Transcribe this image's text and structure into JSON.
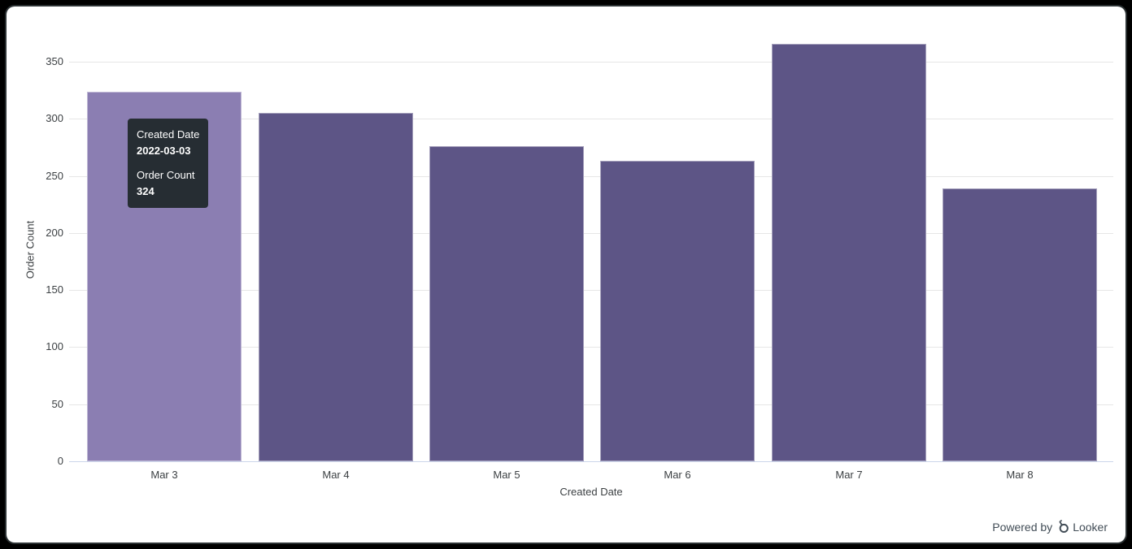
{
  "chart_data": {
    "type": "bar",
    "title": "",
    "categories": [
      "Mar 3",
      "Mar 4",
      "Mar 5",
      "Mar 6",
      "Mar 7",
      "Mar 8"
    ],
    "values": [
      324,
      305,
      276,
      263,
      366,
      239
    ],
    "xlabel": "Created Date",
    "ylabel": "Order Count",
    "ylim": [
      0,
      370
    ],
    "yticks": [
      0,
      50,
      100,
      150,
      200,
      250,
      300,
      350
    ],
    "grid": true,
    "legend": "none",
    "highlighted_index": 0
  },
  "tooltip": {
    "dimension_label": "Created Date",
    "dimension_value": "2022-03-03",
    "measure_label": "Order Count",
    "measure_value": "324"
  },
  "branding": {
    "powered_by": "Powered by",
    "brand": "Looker"
  },
  "colors": {
    "bar_fill": "#5d5586",
    "bar_fill_hover": "#8b7eb2",
    "bar_border": "rgba(255,255,255,0.45)",
    "gridline": "#e6e6e6",
    "axis_line": "#ccd6eb",
    "axis_text": "#3c4043",
    "tooltip_bg": "#262d33",
    "tooltip_text": "#ffffff",
    "powered_text": "#414c56",
    "frame_bg": "#000000",
    "card_bg": "#ffffff"
  }
}
